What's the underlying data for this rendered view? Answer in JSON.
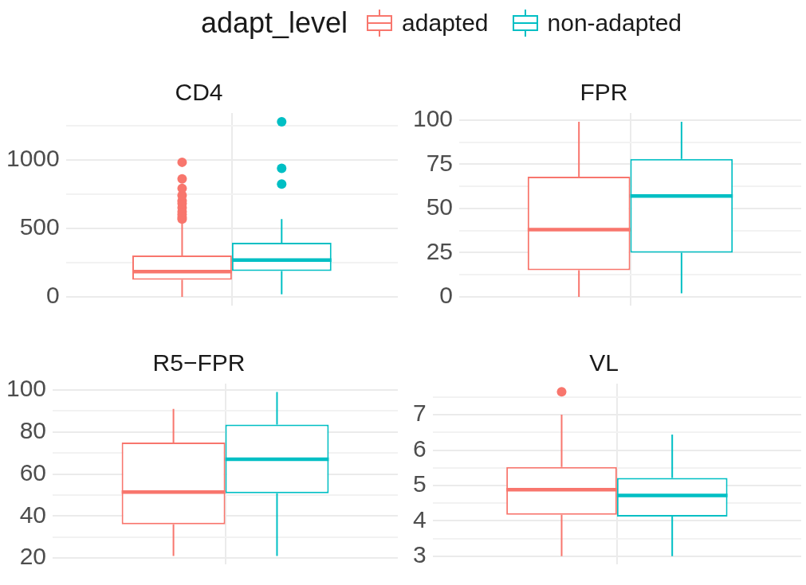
{
  "chart_data": [
    {
      "type": "box",
      "title": "CD4",
      "legend": "top",
      "legend_title": "adapt_level",
      "categories": [
        null
      ],
      "ylim": [
        -64,
        1340
      ],
      "yticks": [
        0,
        {
          "value": 250,
          "label": null
        },
        500,
        {
          "value": 750,
          "label": null
        },
        1000,
        {
          "value": 1250,
          "label": null
        }
      ],
      "grid": true,
      "tick_labels": "y",
      "series": [
        {
          "name": "adapted",
          "color": "#f8766d",
          "boxes": [
            {
              "low": 0,
              "q1": 124,
              "median": 184,
              "q3": 302,
              "high": 555,
              "outliers": [
                567,
                580,
                600,
                620,
                650,
                680,
                700,
                740,
                791,
                860,
                981
              ]
            }
          ]
        },
        {
          "name": "non-adapted",
          "color": "#00bfc4",
          "boxes": [
            {
              "low": 19,
              "q1": 188,
              "median": 268,
              "q3": 394,
              "high": 567,
              "outliers": [
                822,
                937,
                1276
              ]
            }
          ]
        }
      ]
    },
    {
      "type": "box",
      "title": "FPR",
      "categories": [
        null
      ],
      "ylim": [
        -5,
        104
      ],
      "yticks": [
        0,
        {
          "value": 12.5,
          "label": null
        },
        25,
        {
          "value": 37.5,
          "label": null
        },
        50,
        {
          "value": 62.5,
          "label": null
        },
        75,
        {
          "value": 87.5,
          "label": null
        },
        100
      ],
      "grid": true,
      "tick_labels": "y",
      "series": [
        {
          "color": "#f8766d",
          "boxes": [
            {
              "low": 0,
              "q1": 15,
              "median": 38,
              "q3": 68,
              "high": 99
            }
          ]
        },
        {
          "color": "#00bfc4",
          "boxes": [
            {
              "low": 2,
              "q1": 25,
              "median": 57,
              "q3": 78,
              "high": 99
            }
          ]
        }
      ]
    },
    {
      "type": "box",
      "title": "R5−FPR",
      "categories": [
        null
      ],
      "ylim": [
        17,
        103
      ],
      "yticks": [
        20,
        {
          "value": 30,
          "label": null
        },
        40,
        {
          "value": 50,
          "label": null
        },
        60,
        {
          "value": 70,
          "label": null
        },
        80,
        {
          "value": 90,
          "label": null
        },
        100
      ],
      "grid": true,
      "tick_labels": "y",
      "series": [
        {
          "color": "#f8766d",
          "boxes": [
            {
              "low": 21,
              "q1": 36,
              "median": 51.4,
              "q3": 75,
              "high": 91
            }
          ]
        },
        {
          "color": "#00bfc4",
          "boxes": [
            {
              "low": 21,
              "q1": 50.8,
              "median": 67,
              "q3": 83.5,
              "high": 99
            }
          ]
        }
      ]
    },
    {
      "type": "box",
      "title": "VL",
      "categories": [
        null
      ],
      "ylim": [
        2.77,
        7.88
      ],
      "yticks": [
        3,
        {
          "value": 3.5,
          "label": null
        },
        4,
        {
          "value": 4.5,
          "label": null
        },
        5,
        {
          "value": 5.5,
          "label": null
        },
        6,
        {
          "value": 6.5,
          "label": null
        },
        7,
        {
          "value": 7.5,
          "label": null
        }
      ],
      "grid": true,
      "tick_labels": "y",
      "series": [
        {
          "color": "#f8766d",
          "boxes": [
            {
              "low": 3,
              "q1": 4.17,
              "median": 4.88,
              "q3": 5.52,
              "high": 7,
              "outliers": [
                7.65
              ]
            }
          ]
        },
        {
          "color": "#00bfc4",
          "boxes": [
            {
              "low": 3,
              "q1": 4.12,
              "median": 4.72,
              "q3": 5.21,
              "high": 6.44
            }
          ]
        }
      ]
    }
  ]
}
